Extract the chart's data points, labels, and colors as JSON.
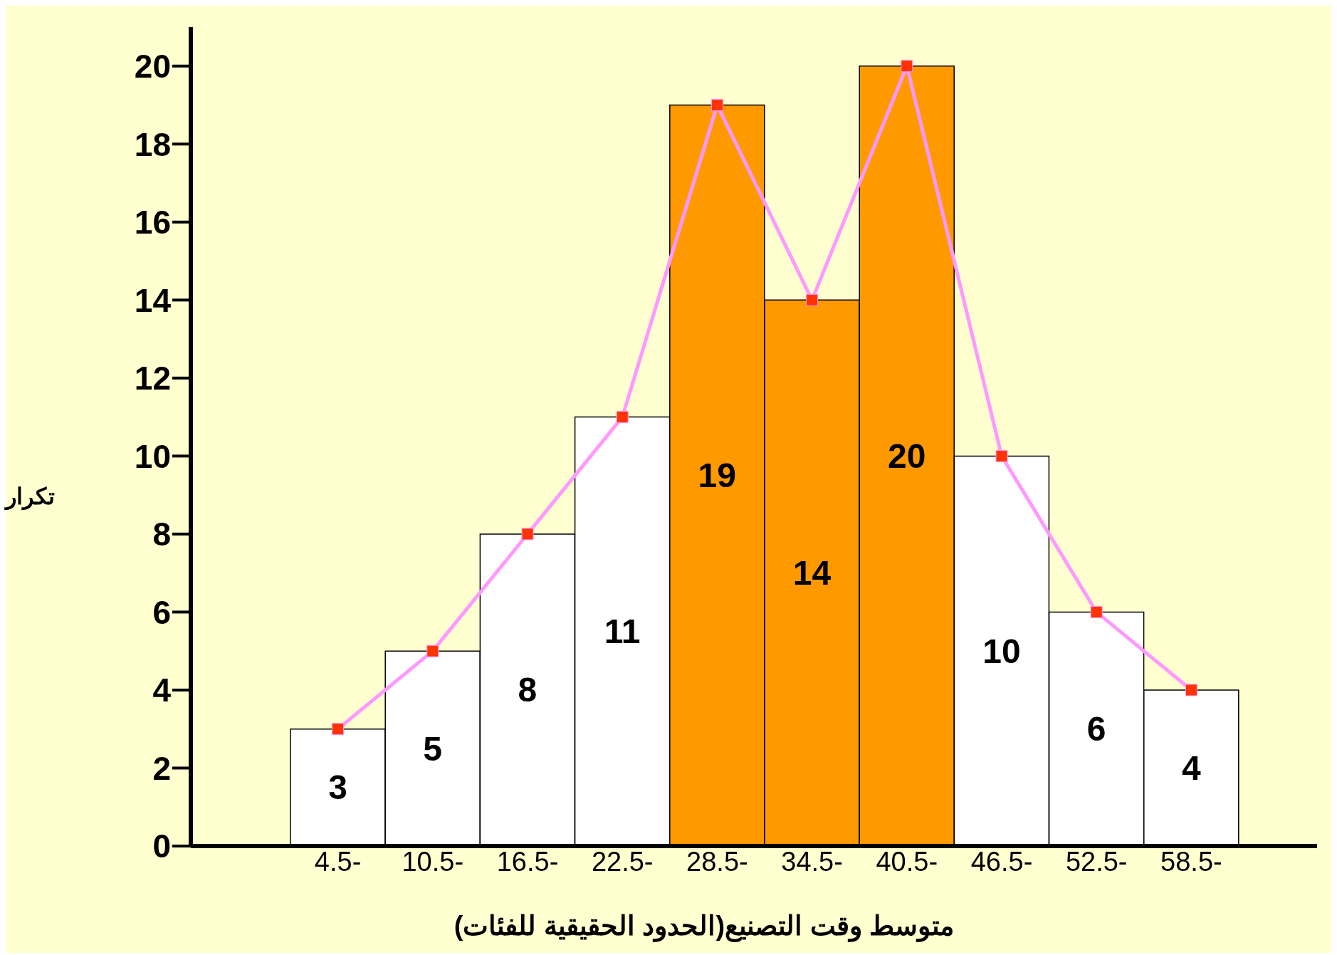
{
  "chart_data": {
    "type": "bar",
    "xlabel": "متوسط وقت التصنيع(الحدود الحقيقية للفئات)",
    "ylabel": "تكرار",
    "categories": [
      "4.5-",
      "10.5-",
      "16.5-",
      "22.5-",
      "28.5-",
      "34.5-",
      "40.5-",
      "46.5-",
      "52.5-",
      "58.5-"
    ],
    "series": [
      {
        "colors": [
          "#ffffff",
          "#ffffff",
          "#ffffff",
          "#ffffff",
          "#ff9900",
          "#ff9900",
          "#ff9900",
          "#ffffff",
          "#ffffff",
          "#ffffff"
        ],
        "values": [
          3,
          5,
          8,
          11,
          19,
          14,
          20,
          10,
          6,
          4
        ],
        "value_labels": [
          "3",
          "5",
          "8",
          "11",
          "19",
          "14",
          "20",
          "10",
          "6",
          "4"
        ]
      },
      {
        "type": "line",
        "color": "#ff99ff",
        "marker": "square",
        "values": [
          3,
          5,
          8,
          11,
          19,
          14,
          20,
          10,
          6,
          4
        ]
      }
    ],
    "ylim": [
      0,
      21
    ],
    "yticks": [
      0,
      2,
      4,
      6,
      8,
      10,
      12,
      14,
      16,
      18,
      20
    ],
    "grid": false
  }
}
